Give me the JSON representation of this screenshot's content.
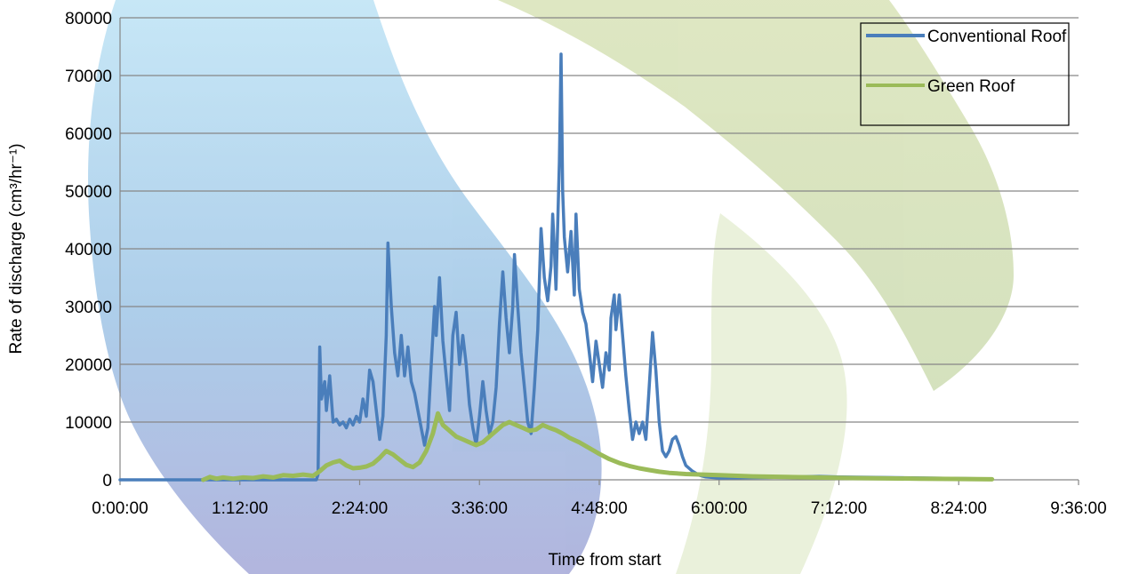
{
  "chart_data": {
    "type": "line",
    "title": "",
    "xlabel": "Time from start",
    "ylabel": "Rate of discharge (cm³/hr⁻¹)",
    "xlim": [
      "0:00:00",
      "9:36:00"
    ],
    "ylim": [
      0,
      80000
    ],
    "x_ticks": [
      "0:00:00",
      "1:12:00",
      "2:24:00",
      "3:36:00",
      "4:48:00",
      "6:00:00",
      "7:12:00",
      "8:24:00",
      "9:36:00"
    ],
    "y_ticks": [
      0,
      10000,
      20000,
      30000,
      40000,
      50000,
      60000,
      70000,
      80000
    ],
    "grid": "horizontal",
    "legend_position": "top-right",
    "series": [
      {
        "name": "Conventional Roof",
        "color": "#4a7ebb",
        "points": [
          [
            "0:00:00",
            0
          ],
          [
            "1:58:00",
            0
          ],
          [
            "1:59:00",
            900
          ],
          [
            "2:00:00",
            23000
          ],
          [
            "2:01:00",
            14000
          ],
          [
            "2:03:00",
            17000
          ],
          [
            "2:04:00",
            12000
          ],
          [
            "2:06:00",
            18000
          ],
          [
            "2:08:00",
            10000
          ],
          [
            "2:10:00",
            10500
          ],
          [
            "2:12:00",
            9500
          ],
          [
            "2:14:00",
            10000
          ],
          [
            "2:16:00",
            9000
          ],
          [
            "2:18:00",
            10500
          ],
          [
            "2:20:00",
            9500
          ],
          [
            "2:22:00",
            11000
          ],
          [
            "2:24:00",
            10000
          ],
          [
            "2:26:00",
            14000
          ],
          [
            "2:28:00",
            11000
          ],
          [
            "2:30:00",
            19000
          ],
          [
            "2:32:00",
            17000
          ],
          [
            "2:34:00",
            12000
          ],
          [
            "2:36:00",
            7000
          ],
          [
            "2:38:00",
            11000
          ],
          [
            "2:40:00",
            25000
          ],
          [
            "2:41:00",
            41000
          ],
          [
            "2:43:00",
            30000
          ],
          [
            "2:45:00",
            22000
          ],
          [
            "2:47:00",
            18000
          ],
          [
            "2:49:00",
            25000
          ],
          [
            "2:51:00",
            18000
          ],
          [
            "2:53:00",
            23000
          ],
          [
            "2:55:00",
            17000
          ],
          [
            "2:57:00",
            15000
          ],
          [
            "2:59:00",
            12000
          ],
          [
            "3:01:00",
            9000
          ],
          [
            "3:03:00",
            6000
          ],
          [
            "3:05:00",
            9000
          ],
          [
            "3:07:00",
            20000
          ],
          [
            "3:09:00",
            30000
          ],
          [
            "3:10:00",
            25000
          ],
          [
            "3:12:00",
            35000
          ],
          [
            "3:14:00",
            24000
          ],
          [
            "3:16:00",
            18000
          ],
          [
            "3:18:00",
            12000
          ],
          [
            "3:20:00",
            25000
          ],
          [
            "3:22:00",
            29000
          ],
          [
            "3:24:00",
            20000
          ],
          [
            "3:26:00",
            25000
          ],
          [
            "3:28:00",
            20000
          ],
          [
            "3:30:00",
            13000
          ],
          [
            "3:32:00",
            9000
          ],
          [
            "3:34:00",
            6000
          ],
          [
            "3:36:00",
            11000
          ],
          [
            "3:38:00",
            17000
          ],
          [
            "3:40:00",
            12000
          ],
          [
            "3:42:00",
            8000
          ],
          [
            "3:44:00",
            10000
          ],
          [
            "3:46:00",
            16000
          ],
          [
            "3:48:00",
            27000
          ],
          [
            "3:50:00",
            36000
          ],
          [
            "3:52:00",
            28000
          ],
          [
            "3:54:00",
            22000
          ],
          [
            "3:56:00",
            30000
          ],
          [
            "3:57:00",
            39000
          ],
          [
            "3:59:00",
            30000
          ],
          [
            "4:01:00",
            22000
          ],
          [
            "4:03:00",
            16000
          ],
          [
            "4:05:00",
            10000
          ],
          [
            "4:07:00",
            8000
          ],
          [
            "4:09:00",
            16000
          ],
          [
            "4:11:00",
            26000
          ],
          [
            "4:13:00",
            43500
          ],
          [
            "4:15:00",
            35000
          ],
          [
            "4:17:00",
            31000
          ],
          [
            "4:19:00",
            37000
          ],
          [
            "4:20:00",
            46000
          ],
          [
            "4:21:00",
            40000
          ],
          [
            "4:22:00",
            33000
          ],
          [
            "4:24:00",
            55000
          ],
          [
            "4:25:00",
            73700
          ],
          [
            "4:26:00",
            50000
          ],
          [
            "4:27:00",
            42000
          ],
          [
            "4:29:00",
            36000
          ],
          [
            "4:31:00",
            43000
          ],
          [
            "4:33:00",
            32000
          ],
          [
            "4:34:00",
            46000
          ],
          [
            "4:36:00",
            33000
          ],
          [
            "4:38:00",
            29000
          ],
          [
            "4:40:00",
            27000
          ],
          [
            "4:42:00",
            22000
          ],
          [
            "4:44:00",
            17000
          ],
          [
            "4:46:00",
            24000
          ],
          [
            "4:48:00",
            20000
          ],
          [
            "4:50:00",
            16000
          ],
          [
            "4:52:00",
            22000
          ],
          [
            "4:54:00",
            19000
          ],
          [
            "4:55:00",
            28000
          ],
          [
            "4:57:00",
            32000
          ],
          [
            "4:58:00",
            26000
          ],
          [
            "5:00:00",
            32000
          ],
          [
            "5:02:00",
            25000
          ],
          [
            "5:04:00",
            18000
          ],
          [
            "5:06:00",
            12000
          ],
          [
            "5:08:00",
            7000
          ],
          [
            "5:10:00",
            10000
          ],
          [
            "5:12:00",
            8000
          ],
          [
            "5:14:00",
            10000
          ],
          [
            "5:16:00",
            7000
          ],
          [
            "5:18:00",
            16000
          ],
          [
            "5:20:00",
            25500
          ],
          [
            "5:22:00",
            19000
          ],
          [
            "5:24:00",
            10000
          ],
          [
            "5:26:00",
            5000
          ],
          [
            "5:28:00",
            4000
          ],
          [
            "5:30:00",
            5000
          ],
          [
            "5:32:00",
            7000
          ],
          [
            "5:34:00",
            7500
          ],
          [
            "5:36:00",
            6000
          ],
          [
            "5:38:00",
            4000
          ],
          [
            "5:40:00",
            2500
          ],
          [
            "5:44:00",
            1500
          ],
          [
            "5:48:00",
            800
          ],
          [
            "5:52:00",
            500
          ],
          [
            "6:00:00",
            300
          ],
          [
            "6:30:00",
            400
          ],
          [
            "7:00:00",
            600
          ],
          [
            "7:12:00",
            500
          ],
          [
            "7:40:00",
            400
          ],
          [
            "8:20:00",
            250
          ],
          [
            "8:44:00",
            150
          ]
        ]
      },
      {
        "name": "Green Roof",
        "color": "#9bbb59",
        "points": [
          [
            "0:50:00",
            0
          ],
          [
            "0:54:00",
            500
          ],
          [
            "0:58:00",
            200
          ],
          [
            "1:02:00",
            400
          ],
          [
            "1:08:00",
            200
          ],
          [
            "1:14:00",
            400
          ],
          [
            "1:20:00",
            300
          ],
          [
            "1:26:00",
            600
          ],
          [
            "1:32:00",
            400
          ],
          [
            "1:38:00",
            800
          ],
          [
            "1:44:00",
            700
          ],
          [
            "1:50:00",
            900
          ],
          [
            "1:56:00",
            700
          ],
          [
            "2:00:00",
            1500
          ],
          [
            "2:04:00",
            2500
          ],
          [
            "2:08:00",
            3000
          ],
          [
            "2:12:00",
            3300
          ],
          [
            "2:16:00",
            2500
          ],
          [
            "2:20:00",
            2000
          ],
          [
            "2:24:00",
            2100
          ],
          [
            "2:28:00",
            2300
          ],
          [
            "2:32:00",
            2800
          ],
          [
            "2:36:00",
            3800
          ],
          [
            "2:40:00",
            5000
          ],
          [
            "2:44:00",
            4400
          ],
          [
            "2:48:00",
            3500
          ],
          [
            "2:52:00",
            2600
          ],
          [
            "2:56:00",
            2200
          ],
          [
            "3:00:00",
            3000
          ],
          [
            "3:04:00",
            5000
          ],
          [
            "3:08:00",
            8000
          ],
          [
            "3:11:00",
            11500
          ],
          [
            "3:14:00",
            9500
          ],
          [
            "3:18:00",
            8500
          ],
          [
            "3:22:00",
            7500
          ],
          [
            "3:26:00",
            7000
          ],
          [
            "3:30:00",
            6500
          ],
          [
            "3:34:00",
            6000
          ],
          [
            "3:38:00",
            6500
          ],
          [
            "3:42:00",
            7500
          ],
          [
            "3:46:00",
            8500
          ],
          [
            "3:50:00",
            9500
          ],
          [
            "3:54:00",
            10000
          ],
          [
            "3:58:00",
            9500
          ],
          [
            "4:02:00",
            9000
          ],
          [
            "4:06:00",
            8500
          ],
          [
            "4:10:00",
            8700
          ],
          [
            "4:14:00",
            9500
          ],
          [
            "4:18:00",
            9000
          ],
          [
            "4:22:00",
            8600
          ],
          [
            "4:26:00",
            8000
          ],
          [
            "4:30:00",
            7300
          ],
          [
            "4:36:00",
            6500
          ],
          [
            "4:42:00",
            5500
          ],
          [
            "4:48:00",
            4500
          ],
          [
            "4:54:00",
            3600
          ],
          [
            "5:00:00",
            2900
          ],
          [
            "5:06:00",
            2400
          ],
          [
            "5:12:00",
            2000
          ],
          [
            "5:18:00",
            1700
          ],
          [
            "5:24:00",
            1400
          ],
          [
            "5:30:00",
            1200
          ],
          [
            "5:40:00",
            1000
          ],
          [
            "5:50:00",
            900
          ],
          [
            "6:00:00",
            800
          ],
          [
            "6:20:00",
            600
          ],
          [
            "6:40:00",
            500
          ],
          [
            "7:00:00",
            400
          ],
          [
            "7:20:00",
            300
          ],
          [
            "7:40:00",
            250
          ],
          [
            "8:00:00",
            200
          ],
          [
            "8:20:00",
            150
          ],
          [
            "8:44:00",
            100
          ]
        ]
      }
    ]
  }
}
